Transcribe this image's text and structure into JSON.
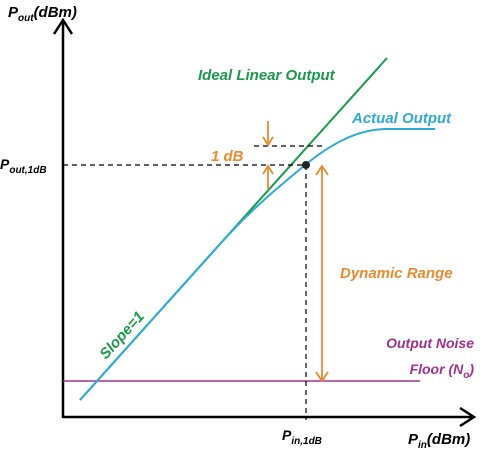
{
  "axes": {
    "y_label": {
      "main": "P",
      "sub": "out",
      "rest": "(dBm)"
    },
    "x_label": {
      "main": "P",
      "sub": "in",
      "rest": "(dBm)"
    },
    "y_tick": {
      "main": "P",
      "sub": "out,1dB"
    },
    "x_tick": {
      "main": "P",
      "sub": "in,1dB"
    }
  },
  "labels": {
    "ideal": "Ideal Linear Output",
    "actual": "Actual Output",
    "one_db": "1 dB",
    "dynamic_range": "Dynamic Range",
    "slope": "Slope=1",
    "noise_line1": "Output Noise",
    "noise_line2_pre": "Floor (N",
    "noise_line2_sub": "o",
    "noise_line2_post": ")"
  },
  "colors": {
    "ideal": "#1a9a4a",
    "actual": "#2eaad8",
    "annotation": "#e88a2e",
    "noise": "#a0308a",
    "axis": "#000000"
  }
}
